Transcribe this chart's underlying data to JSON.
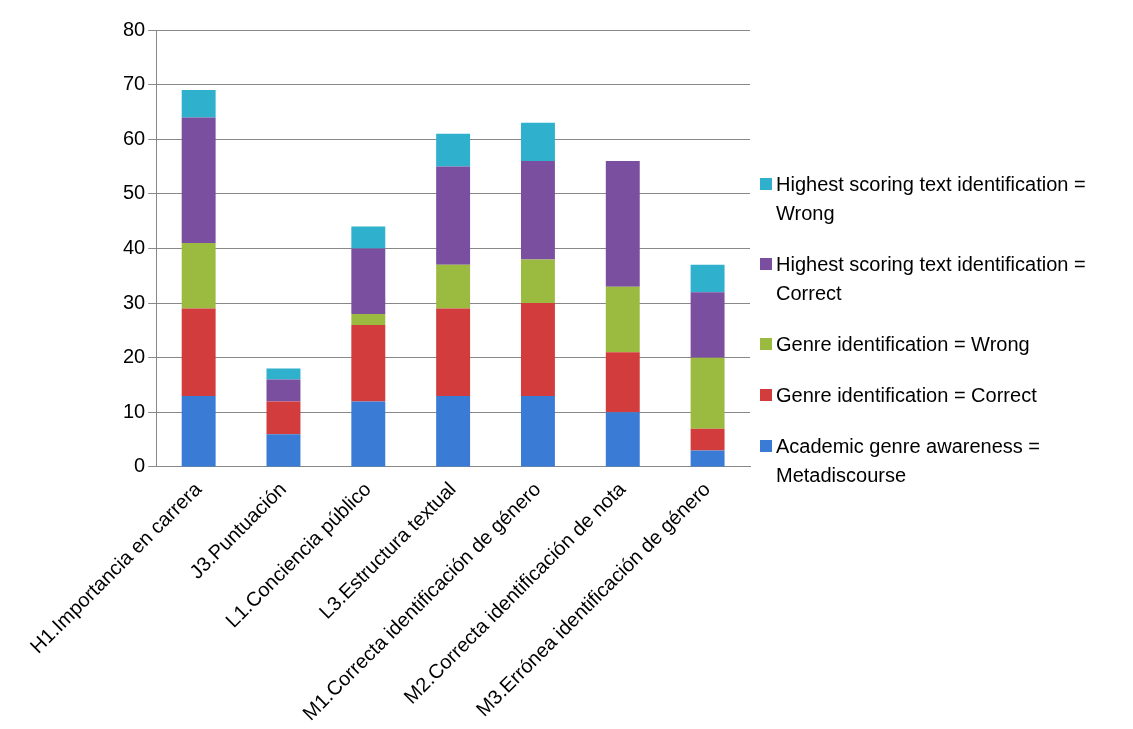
{
  "chart_data": {
    "type": "bar",
    "stacked": true,
    "categories": [
      "H1.Importancia en carrera",
      "J3.Puntuación",
      "L1.Conciencia público",
      "L3.Estructura textual",
      "M1.Correcta identificación de género",
      "M2.Correcta identificación de nota",
      "M3.Errónea identificación de género"
    ],
    "series": [
      {
        "name": "Academic genre awareness = Metadiscourse",
        "color": "#3a7bd5",
        "values": [
          13,
          6,
          12,
          13,
          13,
          10,
          3
        ]
      },
      {
        "name": "Genre identification = Correct",
        "color": "#d23c3c",
        "values": [
          16,
          6,
          14,
          16,
          17,
          11,
          4
        ]
      },
      {
        "name": "Genre identification = Wrong",
        "color": "#9bbb40",
        "values": [
          12,
          0,
          2,
          8,
          8,
          12,
          13
        ]
      },
      {
        "name": "Highest scoring text identification = Correct",
        "color": "#7a4fa0",
        "values": [
          23,
          4,
          12,
          18,
          18,
          23,
          12
        ]
      },
      {
        "name": "Highest scoring text identification = Wrong",
        "color": "#2fb0cc",
        "values": [
          5,
          2,
          4,
          6,
          7,
          0,
          5
        ]
      }
    ],
    "ylim": [
      0,
      80
    ],
    "yticks": [
      0,
      10,
      20,
      30,
      40,
      50,
      60,
      70,
      80
    ],
    "grid": "y",
    "legend": "right"
  }
}
